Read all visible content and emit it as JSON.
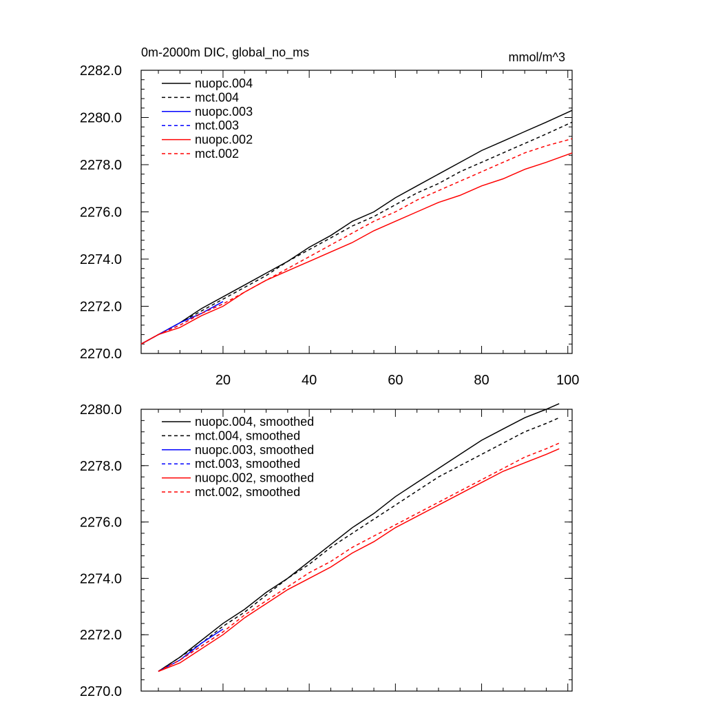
{
  "chart_data": [
    {
      "type": "line",
      "title": "0m-2000m DIC, global_no_ms",
      "units": "mmol/m^3",
      "xlabel": "",
      "ylabel": "",
      "xlim": [
        1,
        101
      ],
      "ylim": [
        2270,
        2282
      ],
      "xticks": [
        20,
        40,
        60,
        80,
        100
      ],
      "yticks": [
        2270.0,
        2272.0,
        2274.0,
        2276.0,
        2278.0,
        2280.0,
        2282.0
      ],
      "xtick_labels": [
        "20",
        "40",
        "60",
        "80",
        "100"
      ],
      "ytick_labels": [
        "2270.0",
        "2272.0",
        "2274.0",
        "2276.0",
        "2278.0",
        "2280.0",
        "2282.0"
      ],
      "show_xtick_labels": true,
      "legend_position": "top-left",
      "series": [
        {
          "name": "nuopc.004",
          "color": "#000000",
          "dash": "solid",
          "x": [
            1,
            5,
            10,
            15,
            20,
            25,
            30,
            35,
            40,
            45,
            50,
            55,
            60,
            65,
            70,
            75,
            80,
            85,
            90,
            95,
            101
          ],
          "values": [
            2270.4,
            2270.8,
            2271.3,
            2271.9,
            2272.4,
            2272.9,
            2273.4,
            2273.9,
            2274.5,
            2275.0,
            2275.6,
            2276.0,
            2276.6,
            2277.1,
            2277.6,
            2278.1,
            2278.6,
            2279.0,
            2279.4,
            2279.8,
            2280.3
          ]
        },
        {
          "name": "mct.004",
          "color": "#000000",
          "dash": "dashed",
          "x": [
            1,
            5,
            10,
            15,
            20,
            25,
            30,
            35,
            40,
            45,
            50,
            55,
            60,
            65,
            70,
            75,
            80,
            85,
            90,
            95,
            101
          ],
          "values": [
            2270.4,
            2270.8,
            2271.3,
            2271.8,
            2272.3,
            2272.8,
            2273.3,
            2273.9,
            2274.4,
            2274.9,
            2275.4,
            2275.8,
            2276.3,
            2276.8,
            2277.2,
            2277.7,
            2278.1,
            2278.5,
            2278.9,
            2279.3,
            2279.8
          ]
        },
        {
          "name": "nuopc.003",
          "color": "#0000ff",
          "dash": "solid",
          "x": [
            1,
            5,
            10,
            15,
            20
          ],
          "values": [
            2270.4,
            2270.8,
            2271.3,
            2271.7,
            2272.2
          ]
        },
        {
          "name": "mct.003",
          "color": "#0000ff",
          "dash": "dashed",
          "x": [
            1,
            5,
            10,
            15,
            20
          ],
          "values": [
            2270.4,
            2270.8,
            2271.2,
            2271.7,
            2272.1
          ]
        },
        {
          "name": "nuopc.002",
          "color": "#ff0000",
          "dash": "solid",
          "x": [
            1,
            5,
            10,
            15,
            20,
            25,
            30,
            35,
            40,
            45,
            50,
            55,
            60,
            65,
            70,
            75,
            80,
            85,
            90,
            95,
            101
          ],
          "values": [
            2270.4,
            2270.8,
            2271.1,
            2271.6,
            2272.0,
            2272.6,
            2273.1,
            2273.5,
            2273.9,
            2274.3,
            2274.7,
            2275.2,
            2275.6,
            2276.0,
            2276.4,
            2276.7,
            2277.1,
            2277.4,
            2277.8,
            2278.1,
            2278.5
          ]
        },
        {
          "name": "mct.002",
          "color": "#ff0000",
          "dash": "dashed",
          "x": [
            1,
            5,
            10,
            15,
            20,
            25,
            30,
            35,
            40,
            45,
            50,
            55,
            60,
            65,
            70,
            75,
            80,
            85,
            90,
            95,
            101
          ],
          "values": [
            2270.4,
            2270.8,
            2271.2,
            2271.7,
            2272.1,
            2272.6,
            2273.1,
            2273.6,
            2274.1,
            2274.6,
            2275.1,
            2275.6,
            2276.0,
            2276.5,
            2276.9,
            2277.3,
            2277.7,
            2278.1,
            2278.5,
            2278.8,
            2279.1
          ]
        }
      ]
    },
    {
      "type": "line",
      "title": "",
      "units": "",
      "xlabel": "",
      "ylabel": "",
      "xlim": [
        1,
        101
      ],
      "ylim": [
        2270,
        2280
      ],
      "xticks": [
        20,
        40,
        60,
        80,
        100
      ],
      "yticks": [
        2270.0,
        2272.0,
        2274.0,
        2276.0,
        2278.0,
        2280.0
      ],
      "xtick_labels": [],
      "ytick_labels": [
        "2270.0",
        "2272.0",
        "2274.0",
        "2276.0",
        "2278.0",
        "2280.0"
      ],
      "show_xtick_labels": false,
      "legend_position": "top-left",
      "series": [
        {
          "name": "nuopc.004, smoothed",
          "color": "#000000",
          "dash": "solid",
          "x": [
            5,
            10,
            15,
            20,
            25,
            30,
            35,
            40,
            45,
            50,
            55,
            60,
            65,
            70,
            75,
            80,
            85,
            90,
            95,
            98
          ],
          "values": [
            2270.7,
            2271.2,
            2271.8,
            2272.4,
            2272.9,
            2273.5,
            2274.0,
            2274.6,
            2275.2,
            2275.8,
            2276.3,
            2276.9,
            2277.4,
            2277.9,
            2278.4,
            2278.9,
            2279.3,
            2279.7,
            2280.0,
            2280.2
          ]
        },
        {
          "name": "mct.004, smoothed",
          "color": "#000000",
          "dash": "dashed",
          "x": [
            5,
            10,
            15,
            20,
            25,
            30,
            35,
            40,
            45,
            50,
            55,
            60,
            65,
            70,
            75,
            80,
            85,
            90,
            95,
            98
          ],
          "values": [
            2270.7,
            2271.2,
            2271.7,
            2272.3,
            2272.8,
            2273.4,
            2274.0,
            2274.5,
            2275.1,
            2275.6,
            2276.1,
            2276.6,
            2277.1,
            2277.6,
            2278.0,
            2278.4,
            2278.8,
            2279.2,
            2279.5,
            2279.7
          ]
        },
        {
          "name": "nuopc.003, smoothed",
          "color": "#0000ff",
          "dash": "solid",
          "x": [
            5,
            10,
            15,
            20
          ],
          "values": [
            2270.7,
            2271.1,
            2271.7,
            2272.2
          ]
        },
        {
          "name": "mct.003, smoothed",
          "color": "#0000ff",
          "dash": "dashed",
          "x": [
            5,
            10,
            15,
            20
          ],
          "values": [
            2270.7,
            2271.1,
            2271.6,
            2272.1
          ]
        },
        {
          "name": "nuopc.002, smoothed",
          "color": "#ff0000",
          "dash": "solid",
          "x": [
            5,
            10,
            15,
            20,
            25,
            30,
            35,
            40,
            45,
            50,
            55,
            60,
            65,
            70,
            75,
            80,
            85,
            90,
            95,
            98
          ],
          "values": [
            2270.7,
            2271.0,
            2271.5,
            2272.0,
            2272.6,
            2273.1,
            2273.6,
            2274.0,
            2274.4,
            2274.9,
            2275.3,
            2275.8,
            2276.2,
            2276.6,
            2277.0,
            2277.4,
            2277.8,
            2278.1,
            2278.4,
            2278.6
          ]
        },
        {
          "name": "mct.002, smoothed",
          "color": "#ff0000",
          "dash": "dashed",
          "x": [
            5,
            10,
            15,
            20,
            25,
            30,
            35,
            40,
            45,
            50,
            55,
            60,
            65,
            70,
            75,
            80,
            85,
            90,
            95,
            98
          ],
          "values": [
            2270.7,
            2271.1,
            2271.6,
            2272.1,
            2272.7,
            2273.2,
            2273.7,
            2274.2,
            2274.6,
            2275.1,
            2275.5,
            2275.9,
            2276.3,
            2276.7,
            2277.1,
            2277.5,
            2277.9,
            2278.3,
            2278.6,
            2278.8
          ]
        }
      ]
    }
  ]
}
